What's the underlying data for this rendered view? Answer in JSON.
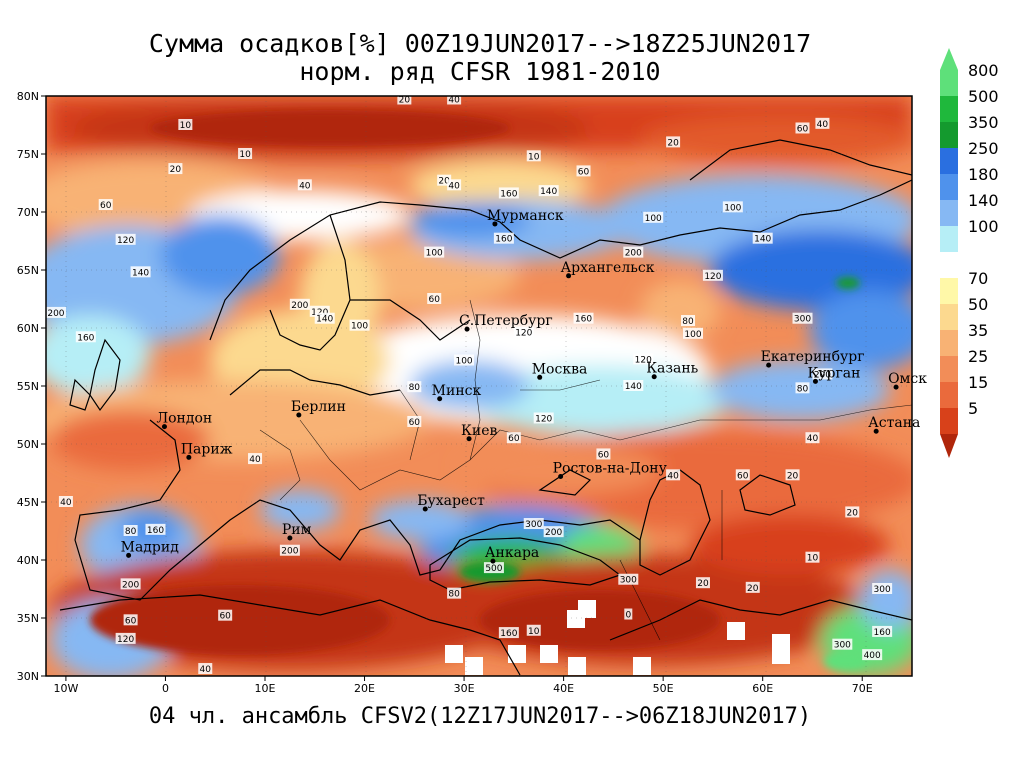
{
  "title": {
    "line1": "Сумма осадков[%] 00Z19JUN2017-->18Z25JUN2017",
    "line2": "норм. ряд CFSR 1981-2010"
  },
  "bottom_title": "04 чл. ансамбль CFSV2(12Z17JUN2017-->06Z18JUN2017)",
  "map": {
    "lon_range": [
      -12,
      75
    ],
    "lat_range": [
      30,
      80
    ],
    "lon_ticks": [
      {
        "label": "10W",
        "lon": -10
      },
      {
        "label": "0",
        "lon": 0
      },
      {
        "label": "10E",
        "lon": 10
      },
      {
        "label": "20E",
        "lon": 20
      },
      {
        "label": "30E",
        "lon": 30
      },
      {
        "label": "40E",
        "lon": 40
      },
      {
        "label": "50E",
        "lon": 50
      },
      {
        "label": "60E",
        "lon": 60
      },
      {
        "label": "70E",
        "lon": 70
      }
    ],
    "lat_ticks": [
      {
        "label": "30N",
        "lat": 30
      },
      {
        "label": "35N",
        "lat": 35
      },
      {
        "label": "40N",
        "lat": 40
      },
      {
        "label": "45N",
        "lat": 45
      },
      {
        "label": "50N",
        "lat": 50
      },
      {
        "label": "55N",
        "lat": 55
      },
      {
        "label": "60N",
        "lat": 60
      },
      {
        "label": "65N",
        "lat": 65
      },
      {
        "label": "70N",
        "lat": 70
      },
      {
        "label": "75N",
        "lat": 75
      },
      {
        "label": "80N",
        "lat": 80
      }
    ],
    "cities": [
      {
        "name": "Мурманск",
        "lon": 33.1,
        "lat": 68.97
      },
      {
        "name": "Архангельск",
        "lon": 40.5,
        "lat": 64.5
      },
      {
        "name": "С.Петербург",
        "lon": 30.3,
        "lat": 59.9
      },
      {
        "name": "Москва",
        "lon": 37.6,
        "lat": 55.75
      },
      {
        "name": "Казань",
        "lon": 49.1,
        "lat": 55.8
      },
      {
        "name": "Екатеринбург",
        "lon": 60.6,
        "lat": 56.8
      },
      {
        "name": "Курган",
        "lon": 65.3,
        "lat": 55.4
      },
      {
        "name": "Омск",
        "lon": 73.4,
        "lat": 54.9
      },
      {
        "name": "Астана",
        "lon": 71.4,
        "lat": 51.1
      },
      {
        "name": "Минск",
        "lon": 27.55,
        "lat": 53.9
      },
      {
        "name": "Берлин",
        "lon": 13.4,
        "lat": 52.5
      },
      {
        "name": "Лондон",
        "lon": -0.1,
        "lat": 51.5
      },
      {
        "name": "Париж",
        "lon": 2.35,
        "lat": 48.85
      },
      {
        "name": "Киев",
        "lon": 30.5,
        "lat": 50.45
      },
      {
        "name": "Ростов-на-Дону",
        "lon": 39.7,
        "lat": 47.2
      },
      {
        "name": "Бухарест",
        "lon": 26.1,
        "lat": 44.4
      },
      {
        "name": "Рим",
        "lon": 12.5,
        "lat": 41.9
      },
      {
        "name": "Мадрид",
        "lon": -3.7,
        "lat": 40.4
      },
      {
        "name": "Анкара",
        "lon": 32.9,
        "lat": 39.9
      }
    ],
    "contour_labels": [
      {
        "text": "10",
        "lon": 2,
        "lat": 77.5
      },
      {
        "text": "20",
        "lon": 24,
        "lat": 79.7
      },
      {
        "text": "40",
        "lon": 29,
        "lat": 79.7
      },
      {
        "text": "10",
        "lon": 8,
        "lat": 75
      },
      {
        "text": "20",
        "lon": 1,
        "lat": 73.7
      },
      {
        "text": "10",
        "lon": 37,
        "lat": 74.8
      },
      {
        "text": "20",
        "lon": 51,
        "lat": 76
      },
      {
        "text": "60",
        "lon": 64,
        "lat": 77.2
      },
      {
        "text": "40",
        "lon": 66,
        "lat": 77.6
      },
      {
        "text": "40",
        "lon": 14,
        "lat": 72.3
      },
      {
        "text": "20",
        "lon": 28,
        "lat": 72.7
      },
      {
        "text": "40",
        "lon": 29,
        "lat": 72.3
      },
      {
        "text": "60",
        "lon": 42,
        "lat": 73.5
      },
      {
        "text": "160",
        "lon": 34.5,
        "lat": 71.6
      },
      {
        "text": "140",
        "lon": 38.5,
        "lat": 71.8
      },
      {
        "text": "60",
        "lon": -6,
        "lat": 70.6
      },
      {
        "text": "120",
        "lon": -4,
        "lat": 67.6
      },
      {
        "text": "140",
        "lon": -2.5,
        "lat": 64.8
      },
      {
        "text": "200",
        "lon": -11,
        "lat": 61.3
      },
      {
        "text": "160",
        "lon": -8,
        "lat": 59.2
      },
      {
        "text": "200",
        "lon": 13.5,
        "lat": 62
      },
      {
        "text": "120",
        "lon": 15.5,
        "lat": 61.4
      },
      {
        "text": "140",
        "lon": 16,
        "lat": 60.8
      },
      {
        "text": "100",
        "lon": 19.5,
        "lat": 60.2
      },
      {
        "text": "100",
        "lon": 27,
        "lat": 66.5
      },
      {
        "text": "60",
        "lon": 27,
        "lat": 62.5
      },
      {
        "text": "160",
        "lon": 34,
        "lat": 67.7
      },
      {
        "text": "100",
        "lon": 49,
        "lat": 69.5
      },
      {
        "text": "200",
        "lon": 47,
        "lat": 66.5
      },
      {
        "text": "100",
        "lon": 57,
        "lat": 70.4
      },
      {
        "text": "140",
        "lon": 60,
        "lat": 67.7
      },
      {
        "text": "120",
        "lon": 55,
        "lat": 64.5
      },
      {
        "text": "300",
        "lon": 64,
        "lat": 60.8
      },
      {
        "text": "160",
        "lon": 42,
        "lat": 60.8
      },
      {
        "text": "120",
        "lon": 36,
        "lat": 59.6
      },
      {
        "text": "100",
        "lon": 30,
        "lat": 57.2
      },
      {
        "text": "80",
        "lon": 52.5,
        "lat": 60.6
      },
      {
        "text": "100",
        "lon": 53,
        "lat": 59.5
      },
      {
        "text": "120",
        "lon": 48,
        "lat": 57.3
      },
      {
        "text": "140",
        "lon": 47,
        "lat": 55
      },
      {
        "text": "120",
        "lon": 38,
        "lat": 52.2
      },
      {
        "text": "80",
        "lon": 25,
        "lat": 54.9
      },
      {
        "text": "60",
        "lon": 35,
        "lat": 50.5
      },
      {
        "text": "60",
        "lon": 25,
        "lat": 51.9
      },
      {
        "text": "40",
        "lon": 9,
        "lat": 48.7
      },
      {
        "text": "60",
        "lon": 44,
        "lat": 49.1
      },
      {
        "text": "40",
        "lon": 51,
        "lat": 47.3
      },
      {
        "text": "60",
        "lon": 58,
        "lat": 47.3
      },
      {
        "text": "20",
        "lon": 63,
        "lat": 47.3
      },
      {
        "text": "40",
        "lon": 65,
        "lat": 50.5
      },
      {
        "text": "80",
        "lon": 64,
        "lat": 54.8
      },
      {
        "text": "200",
        "lon": 66,
        "lat": 56
      },
      {
        "text": "40",
        "lon": -10,
        "lat": 45
      },
      {
        "text": "80",
        "lon": -3.5,
        "lat": 42.5
      },
      {
        "text": "160",
        "lon": -1,
        "lat": 42.6
      },
      {
        "text": "200",
        "lon": -3.5,
        "lat": 37.9
      },
      {
        "text": "60",
        "lon": -3.5,
        "lat": 34.8
      },
      {
        "text": "120",
        "lon": -4,
        "lat": 33.2
      },
      {
        "text": "40",
        "lon": 4,
        "lat": 30.6
      },
      {
        "text": "60",
        "lon": 6,
        "lat": 35.2
      },
      {
        "text": "200",
        "lon": 12.5,
        "lat": 40.8
      },
      {
        "text": "300",
        "lon": 37,
        "lat": 43.1
      },
      {
        "text": "200",
        "lon": 39,
        "lat": 42.4
      },
      {
        "text": "500",
        "lon": 33,
        "lat": 39.3
      },
      {
        "text": "80",
        "lon": 29,
        "lat": 37.1
      },
      {
        "text": "300",
        "lon": 46.5,
        "lat": 38.3
      },
      {
        "text": "0",
        "lon": 46.5,
        "lat": 35.3
      },
      {
        "text": "160",
        "lon": 34.5,
        "lat": 33.7
      },
      {
        "text": "10",
        "lon": 37,
        "lat": 33.9
      },
      {
        "text": "20",
        "lon": 59,
        "lat": 37.6
      },
      {
        "text": "20",
        "lon": 54,
        "lat": 38
      },
      {
        "text": "10",
        "lon": 65,
        "lat": 40.2
      },
      {
        "text": "20",
        "lon": 69,
        "lat": 44.1
      },
      {
        "text": "300",
        "lon": 68,
        "lat": 32.7
      },
      {
        "text": "400",
        "lon": 71,
        "lat": 31.8
      },
      {
        "text": "160",
        "lon": 72,
        "lat": 33.8
      },
      {
        "text": "300",
        "lon": 72,
        "lat": 37.5
      }
    ]
  },
  "colorbar": {
    "top_color": "#5ee07a",
    "bottom_color": "#b0260b",
    "segments": [
      {
        "label": "800",
        "color": "#5ee07a"
      },
      {
        "label": "500",
        "color": "#1fb83c"
      },
      {
        "label": "350",
        "color": "#149a2e"
      },
      {
        "label": "250",
        "color": "#2a6fe0"
      },
      {
        "label": "180",
        "color": "#4f92ec"
      },
      {
        "label": "140",
        "color": "#86b8f3"
      },
      {
        "label": "100",
        "color": "#b6eef6"
      },
      {
        "label": "",
        "color": "#ffffff"
      },
      {
        "label": "70",
        "color": "#fff8a8"
      },
      {
        "label": "50",
        "color": "#fcd98f"
      },
      {
        "label": "35",
        "color": "#f8b274"
      },
      {
        "label": "25",
        "color": "#f28d58"
      },
      {
        "label": "15",
        "color": "#ea6a3c"
      },
      {
        "label": "5",
        "color": "#d8411a"
      }
    ]
  }
}
